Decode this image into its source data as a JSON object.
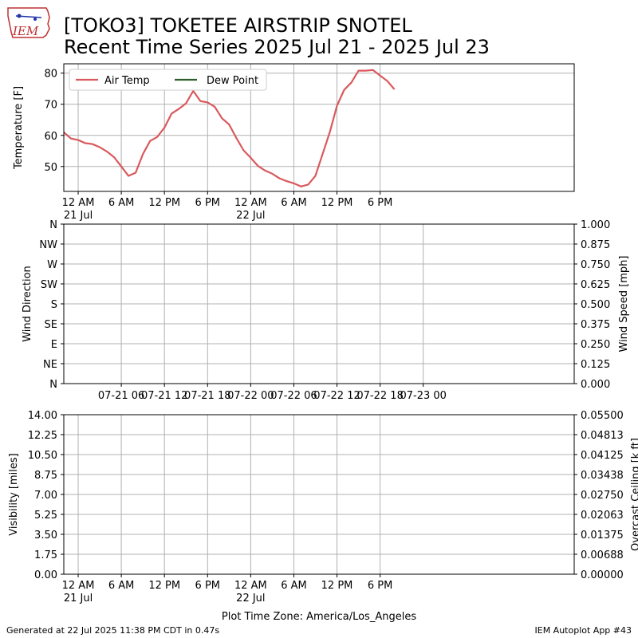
{
  "header": {
    "logo_text": "IEM",
    "title_line1": "[TOKO3] TOKETEE AIRSTRIP SNOTEL",
    "title_line2": "Recent Time Series 2025 Jul 21 - 2025 Jul 23"
  },
  "footer": {
    "generated": "Generated at 22 Jul 2025 11:38 PM CDT in 0.47s",
    "app": "IEM Autoplot App #43"
  },
  "colors": {
    "air_temp": "#d9595c",
    "dew_point": "#2e5e2e",
    "ceiling_label": "#008000",
    "grid": "#b0b0b0"
  },
  "chart_data": [
    {
      "type": "line",
      "name": "temperature",
      "ylabel": "Temperature [F]",
      "ylim": [
        42,
        83
      ],
      "yticks": [
        50,
        60,
        70,
        80
      ],
      "xlim_hours": [
        -2,
        69
      ],
      "xticks": [
        {
          "h": 0,
          "line1": "12 AM",
          "line2": "21 Jul"
        },
        {
          "h": 6,
          "line1": "6 AM",
          "line2": ""
        },
        {
          "h": 12,
          "line1": "12 PM",
          "line2": ""
        },
        {
          "h": 18,
          "line1": "6 PM",
          "line2": ""
        },
        {
          "h": 24,
          "line1": "12 AM",
          "line2": "22 Jul"
        },
        {
          "h": 30,
          "line1": "6 AM",
          "line2": ""
        },
        {
          "h": 36,
          "line1": "12 PM",
          "line2": ""
        },
        {
          "h": 42,
          "line1": "6 PM",
          "line2": ""
        }
      ],
      "grid": true,
      "legend_position": "upper-left",
      "series": [
        {
          "name": "Air Temp",
          "x": [
            -3,
            -2,
            -1,
            0,
            1,
            2,
            3,
            4,
            5,
            6,
            7,
            8,
            9,
            10,
            11,
            12,
            13,
            14,
            15,
            16,
            17,
            18,
            19,
            20,
            21,
            22,
            23,
            24,
            25,
            26,
            27,
            28,
            29,
            30,
            31,
            32,
            33,
            34,
            35,
            36,
            37,
            38,
            39,
            40,
            41,
            42,
            43,
            44
          ],
          "values": [
            61.5,
            61,
            59,
            58.5,
            57.5,
            57.2,
            56.2,
            54.8,
            53,
            50,
            47,
            48,
            54,
            58.2,
            59.5,
            62.5,
            67,
            68.5,
            70.3,
            74.3,
            71,
            70.6,
            69.2,
            65.5,
            63.5,
            59.2,
            55.2,
            52.8,
            50.2,
            48.7,
            47.7,
            46.2,
            45.3,
            44.6,
            43.6,
            44.2,
            47,
            54,
            61,
            69.5,
            74.6,
            77,
            80.8,
            80.8,
            81,
            79.2,
            77.5,
            74.8
          ]
        },
        {
          "name": "Dew Point",
          "x": [],
          "values": []
        }
      ]
    },
    {
      "type": "line",
      "name": "wind",
      "ylabel": "Wind Direction",
      "ylabel_right": "Wind Speed [mph]",
      "yticks_left": [
        "N",
        "NE",
        "E",
        "SE",
        "S",
        "SW",
        "W",
        "NW",
        "N"
      ],
      "yticks_right": [
        "0.000",
        "0.125",
        "0.250",
        "0.375",
        "0.500",
        "0.625",
        "0.750",
        "0.875",
        "1.000"
      ],
      "ylim_right": [
        0,
        1
      ],
      "xlim_hours": [
        -2,
        69
      ],
      "xticks": [
        {
          "h": 6,
          "label": "07-21 06"
        },
        {
          "h": 12,
          "label": "07-21 12"
        },
        {
          "h": 18,
          "label": "07-21 18"
        },
        {
          "h": 24,
          "label": "07-22 00"
        },
        {
          "h": 30,
          "label": "07-22 06"
        },
        {
          "h": 36,
          "label": "07-22 12"
        },
        {
          "h": 42,
          "label": "07-22 18"
        },
        {
          "h": 48,
          "label": "07-23 00"
        }
      ],
      "grid": true,
      "series": []
    },
    {
      "type": "line",
      "name": "visibility",
      "ylabel": "Visibility [miles]",
      "ylabel_right": "Overcast Ceiling [k ft]",
      "yticks_left": [
        "0.00",
        "1.75",
        "3.50",
        "5.25",
        "7.00",
        "8.75",
        "10.50",
        "12.25",
        "14.00"
      ],
      "yticks_right": [
        "0.00000",
        "0.00688",
        "0.01375",
        "0.02063",
        "0.02750",
        "0.03438",
        "0.04125",
        "0.04813",
        "0.05500"
      ],
      "ylim": [
        0,
        14
      ],
      "ylim_right": [
        0,
        0.055
      ],
      "xlim_hours": [
        -2,
        69
      ],
      "xticks": [
        {
          "h": 0,
          "line1": "12 AM",
          "line2": "21 Jul"
        },
        {
          "h": 6,
          "line1": "6 AM",
          "line2": ""
        },
        {
          "h": 12,
          "line1": "12 PM",
          "line2": ""
        },
        {
          "h": 18,
          "line1": "6 PM",
          "line2": ""
        },
        {
          "h": 24,
          "line1": "12 AM",
          "line2": "22 Jul"
        },
        {
          "h": 30,
          "line1": "6 AM",
          "line2": ""
        },
        {
          "h": 36,
          "line1": "12 PM",
          "line2": ""
        },
        {
          "h": 42,
          "line1": "6 PM",
          "line2": ""
        }
      ],
      "xlabel": "Plot Time Zone: America/Los_Angeles",
      "grid": true,
      "series": []
    }
  ]
}
